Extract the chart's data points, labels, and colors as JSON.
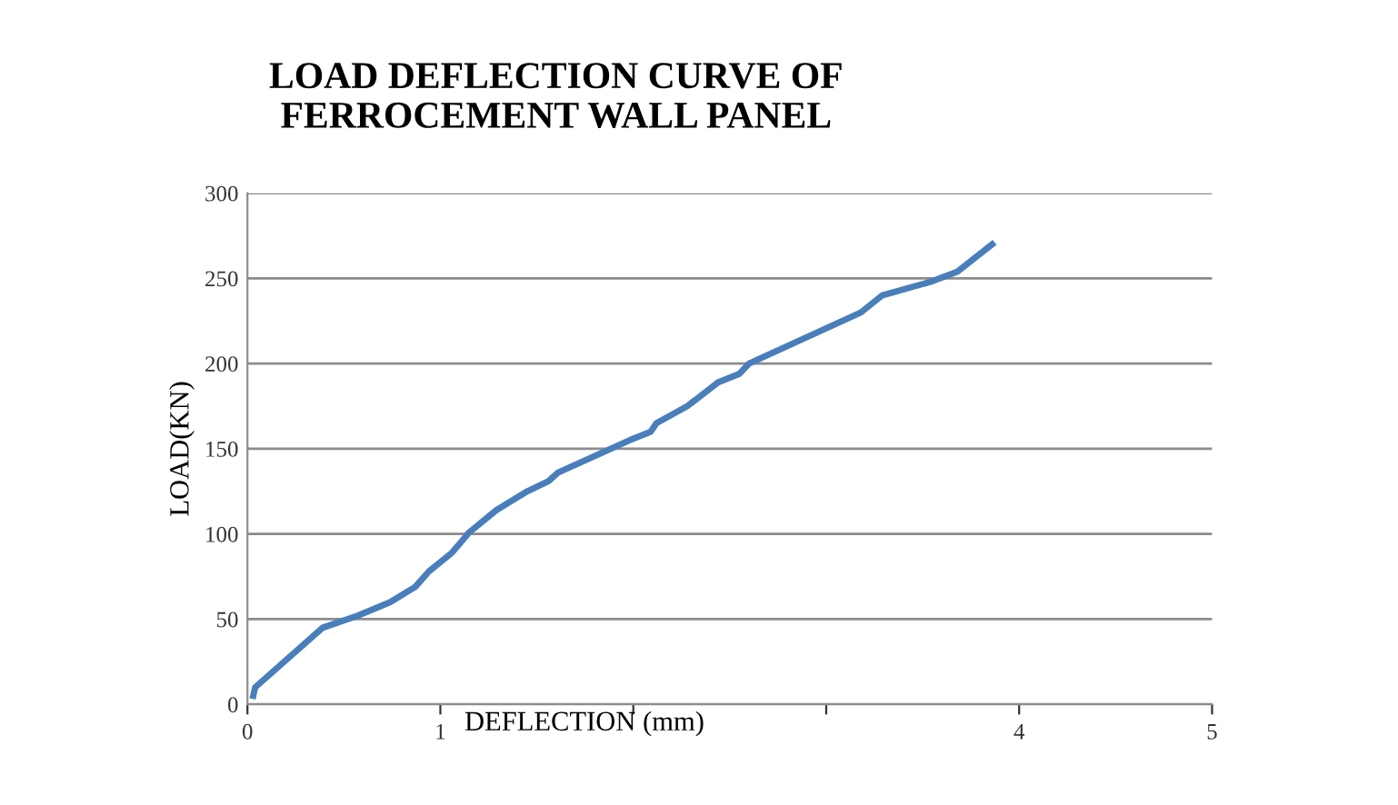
{
  "chart_data": {
    "type": "line",
    "title": "LOAD DEFLECTION CURVE OF\nFERROCEMENT WALL PANEL",
    "xlabel": "DEFLECTION (mm)",
    "ylabel": "LOAD(KN)",
    "x": [
      0.03,
      0.04,
      0.39,
      0.57,
      0.74,
      0.87,
      0.94,
      1.06,
      1.15,
      1.29,
      1.45,
      1.56,
      1.61,
      1.98,
      2.09,
      2.12,
      2.28,
      2.44,
      2.55,
      2.6,
      3.18,
      3.29,
      3.54,
      3.68,
      3.86
    ],
    "series": [
      {
        "color": "#4a7ebb",
        "values": [
          5,
          10,
          45,
          52,
          60,
          69,
          78,
          89,
          101,
          114,
          125,
          131,
          136,
          155,
          160,
          165,
          175,
          189,
          194,
          200,
          230,
          240,
          248,
          254,
          270
        ]
      }
    ],
    "xlim": [
      0,
      5
    ],
    "ylim": [
      0,
      300
    ],
    "xticks": [
      0,
      1,
      {
        "value": 2,
        "label": null
      },
      {
        "value": 3,
        "label": null
      },
      4,
      5
    ],
    "yticks": [
      0,
      50,
      100,
      150,
      200,
      250,
      300
    ],
    "grid": "y",
    "marker": "none",
    "line_style": "solid",
    "legend": false
  }
}
